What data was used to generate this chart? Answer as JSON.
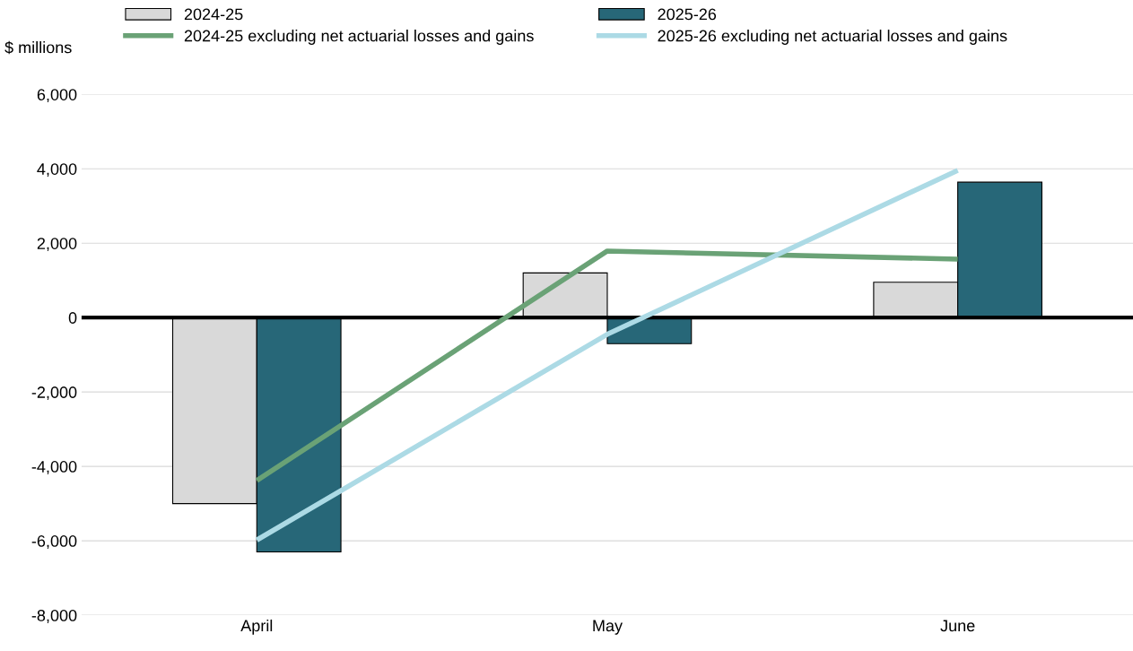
{
  "chart_data": {
    "type": "bar",
    "ylabel": "$ millions",
    "categories": [
      "April",
      "May",
      "June"
    ],
    "series": [
      {
        "name": "2024-25",
        "color": "#d9d9d9",
        "values": [
          -5000,
          1200,
          950
        ]
      },
      {
        "name": "2025-26",
        "color": "#276778",
        "values": [
          -6300,
          -700,
          3640
        ]
      },
      {
        "name": "2024-25 excluding net actuarial losses and gains",
        "type": "line",
        "color": "#6aa276",
        "values": [
          -4380,
          1790,
          1570
        ]
      },
      {
        "name": "2025-26 excluding net actuarial losses and gains",
        "type": "line",
        "color": "#acdae5",
        "values": [
          -5980,
          -450,
          3960
        ]
      }
    ],
    "ylim": [
      -8000,
      6000
    ],
    "yticks": [
      {
        "value": -8000,
        "label": "-8,000"
      },
      {
        "value": -6000,
        "label": "-6,000"
      },
      {
        "value": -4000,
        "label": "-4,000"
      },
      {
        "value": -2000,
        "label": "-2,000"
      },
      0,
      {
        "value": 2000,
        "label": "2,000"
      },
      {
        "value": 4000,
        "label": "4,000"
      },
      {
        "value": 6000,
        "label": "6,000"
      }
    ],
    "ref_lines": [
      {
        "axis": "y",
        "value": 0,
        "color": "#000000"
      }
    ],
    "grid": "y",
    "legend": "top",
    "marker": "none",
    "line_style": "solid"
  }
}
